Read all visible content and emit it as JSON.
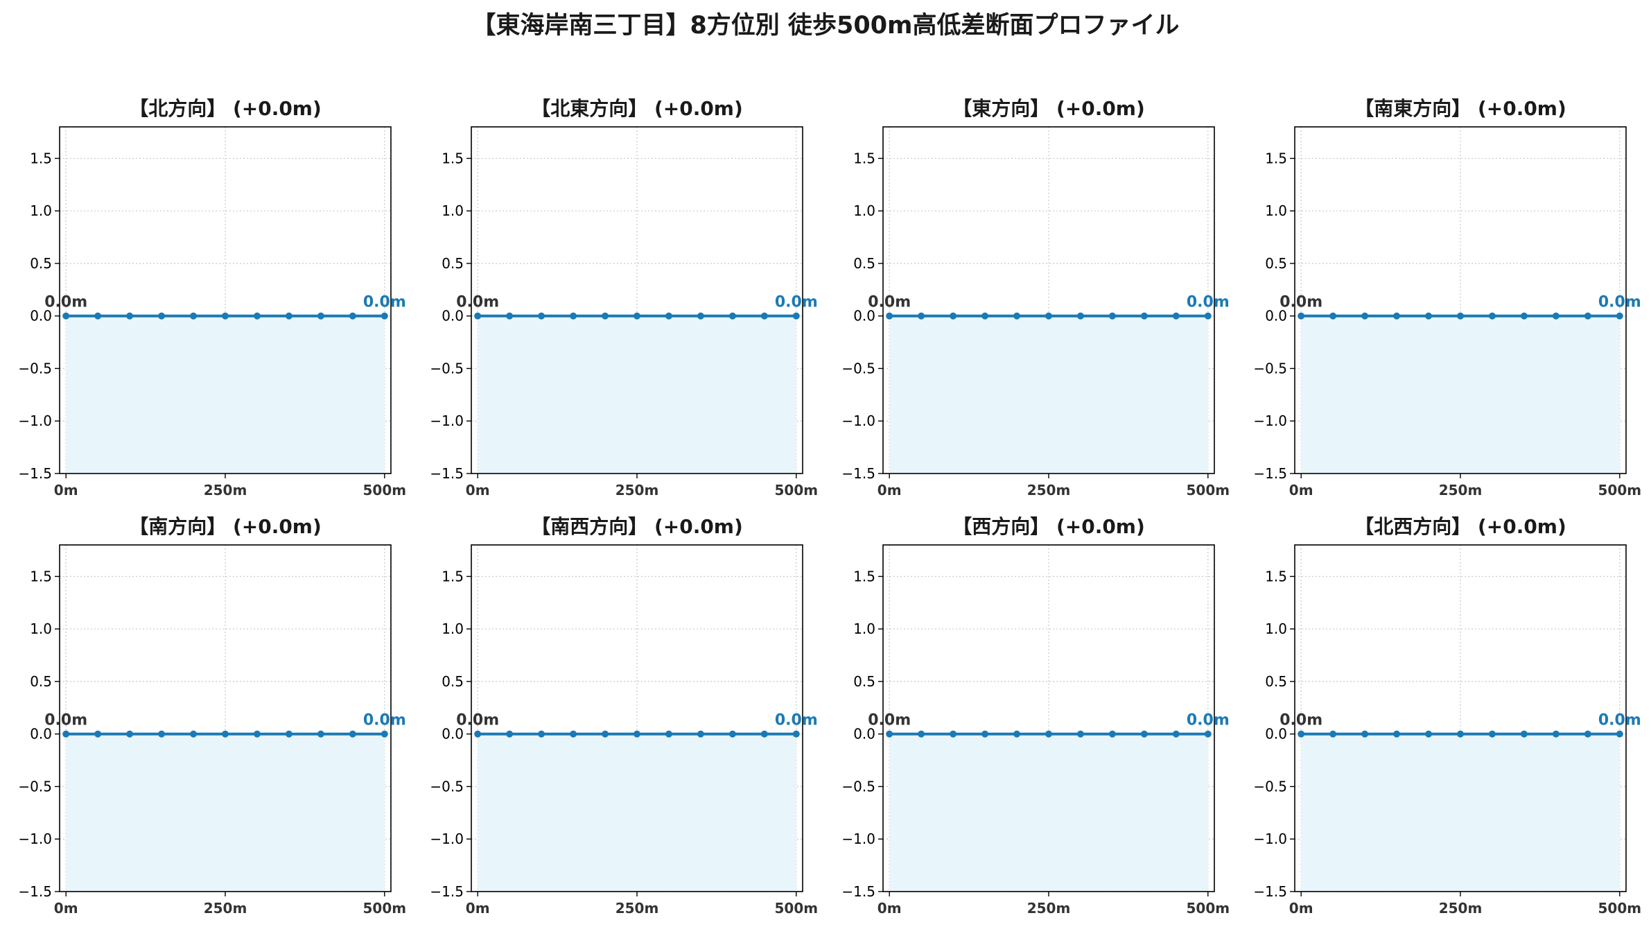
{
  "title": "【東海岸南三丁目】8方位別 徒歩500m高低差断面プロファイル",
  "colors": {
    "line": "#1a7ab5",
    "fill": "#e8f6fc",
    "start_label": "#333333",
    "end_label": "#1a7ab5",
    "grid": "#c8c8c8"
  },
  "chart_data": [
    {
      "type": "line",
      "title": "【北方向】 (+0.0m)",
      "x": [
        0,
        50,
        100,
        150,
        200,
        250,
        300,
        350,
        400,
        450,
        500
      ],
      "y": [
        0,
        0,
        0,
        0,
        0,
        0,
        0,
        0,
        0,
        0,
        0
      ],
      "xlim": [
        -10,
        510
      ],
      "ylim": [
        -1.5,
        1.8
      ],
      "yticks": [
        "−1.5",
        "−1.0",
        "−0.5",
        "0.0",
        "0.5",
        "1.0",
        "1.5"
      ],
      "ytick_values": [
        -1.5,
        -1.0,
        -0.5,
        0.0,
        0.5,
        1.0,
        1.5
      ],
      "xticks": [
        "0m",
        "250m",
        "500m"
      ],
      "xtick_values": [
        0,
        250,
        500
      ],
      "start_label": "0.0m",
      "end_label": "0.0m",
      "grid": true
    },
    {
      "type": "line",
      "title": "【北東方向】 (+0.0m)",
      "x": [
        0,
        50,
        100,
        150,
        200,
        250,
        300,
        350,
        400,
        450,
        500
      ],
      "y": [
        0,
        0,
        0,
        0,
        0,
        0,
        0,
        0,
        0,
        0,
        0
      ],
      "xlim": [
        -10,
        510
      ],
      "ylim": [
        -1.5,
        1.8
      ],
      "yticks": [
        "−1.5",
        "−1.0",
        "−0.5",
        "0.0",
        "0.5",
        "1.0",
        "1.5"
      ],
      "ytick_values": [
        -1.5,
        -1.0,
        -0.5,
        0.0,
        0.5,
        1.0,
        1.5
      ],
      "xticks": [
        "0m",
        "250m",
        "500m"
      ],
      "xtick_values": [
        0,
        250,
        500
      ],
      "start_label": "0.0m",
      "end_label": "0.0m",
      "grid": true
    },
    {
      "type": "line",
      "title": "【東方向】 (+0.0m)",
      "x": [
        0,
        50,
        100,
        150,
        200,
        250,
        300,
        350,
        400,
        450,
        500
      ],
      "y": [
        0,
        0,
        0,
        0,
        0,
        0,
        0,
        0,
        0,
        0,
        0
      ],
      "xlim": [
        -10,
        510
      ],
      "ylim": [
        -1.5,
        1.8
      ],
      "yticks": [
        "−1.5",
        "−1.0",
        "−0.5",
        "0.0",
        "0.5",
        "1.0",
        "1.5"
      ],
      "ytick_values": [
        -1.5,
        -1.0,
        -0.5,
        0.0,
        0.5,
        1.0,
        1.5
      ],
      "xticks": [
        "0m",
        "250m",
        "500m"
      ],
      "xtick_values": [
        0,
        250,
        500
      ],
      "start_label": "0.0m",
      "end_label": "0.0m",
      "grid": true
    },
    {
      "type": "line",
      "title": "【南東方向】 (+0.0m)",
      "x": [
        0,
        50,
        100,
        150,
        200,
        250,
        300,
        350,
        400,
        450,
        500
      ],
      "y": [
        0,
        0,
        0,
        0,
        0,
        0,
        0,
        0,
        0,
        0,
        0
      ],
      "xlim": [
        -10,
        510
      ],
      "ylim": [
        -1.5,
        1.8
      ],
      "yticks": [
        "−1.5",
        "−1.0",
        "−0.5",
        "0.0",
        "0.5",
        "1.0",
        "1.5"
      ],
      "ytick_values": [
        -1.5,
        -1.0,
        -0.5,
        0.0,
        0.5,
        1.0,
        1.5
      ],
      "xticks": [
        "0m",
        "250m",
        "500m"
      ],
      "xtick_values": [
        0,
        250,
        500
      ],
      "start_label": "0.0m",
      "end_label": "0.0m",
      "grid": true
    },
    {
      "type": "line",
      "title": "【南方向】 (+0.0m)",
      "x": [
        0,
        50,
        100,
        150,
        200,
        250,
        300,
        350,
        400,
        450,
        500
      ],
      "y": [
        0,
        0,
        0,
        0,
        0,
        0,
        0,
        0,
        0,
        0,
        0
      ],
      "xlim": [
        -10,
        510
      ],
      "ylim": [
        -1.5,
        1.8
      ],
      "yticks": [
        "−1.5",
        "−1.0",
        "−0.5",
        "0.0",
        "0.5",
        "1.0",
        "1.5"
      ],
      "ytick_values": [
        -1.5,
        -1.0,
        -0.5,
        0.0,
        0.5,
        1.0,
        1.5
      ],
      "xticks": [
        "0m",
        "250m",
        "500m"
      ],
      "xtick_values": [
        0,
        250,
        500
      ],
      "start_label": "0.0m",
      "end_label": "0.0m",
      "grid": true
    },
    {
      "type": "line",
      "title": "【南西方向】 (+0.0m)",
      "x": [
        0,
        50,
        100,
        150,
        200,
        250,
        300,
        350,
        400,
        450,
        500
      ],
      "y": [
        0,
        0,
        0,
        0,
        0,
        0,
        0,
        0,
        0,
        0,
        0
      ],
      "xlim": [
        -10,
        510
      ],
      "ylim": [
        -1.5,
        1.8
      ],
      "yticks": [
        "−1.5",
        "−1.0",
        "−0.5",
        "0.0",
        "0.5",
        "1.0",
        "1.5"
      ],
      "ytick_values": [
        -1.5,
        -1.0,
        -0.5,
        0.0,
        0.5,
        1.0,
        1.5
      ],
      "xticks": [
        "0m",
        "250m",
        "500m"
      ],
      "xtick_values": [
        0,
        250,
        500
      ],
      "start_label": "0.0m",
      "end_label": "0.0m",
      "grid": true
    },
    {
      "type": "line",
      "title": "【西方向】 (+0.0m)",
      "x": [
        0,
        50,
        100,
        150,
        200,
        250,
        300,
        350,
        400,
        450,
        500
      ],
      "y": [
        0,
        0,
        0,
        0,
        0,
        0,
        0,
        0,
        0,
        0,
        0
      ],
      "xlim": [
        -10,
        510
      ],
      "ylim": [
        -1.5,
        1.8
      ],
      "yticks": [
        "−1.5",
        "−1.0",
        "−0.5",
        "0.0",
        "0.5",
        "1.0",
        "1.5"
      ],
      "ytick_values": [
        -1.5,
        -1.0,
        -0.5,
        0.0,
        0.5,
        1.0,
        1.5
      ],
      "xticks": [
        "0m",
        "250m",
        "500m"
      ],
      "xtick_values": [
        0,
        250,
        500
      ],
      "start_label": "0.0m",
      "end_label": "0.0m",
      "grid": true
    },
    {
      "type": "line",
      "title": "【北西方向】 (+0.0m)",
      "x": [
        0,
        50,
        100,
        150,
        200,
        250,
        300,
        350,
        400,
        450,
        500
      ],
      "y": [
        0,
        0,
        0,
        0,
        0,
        0,
        0,
        0,
        0,
        0,
        0
      ],
      "xlim": [
        -10,
        510
      ],
      "ylim": [
        -1.5,
        1.8
      ],
      "yticks": [
        "−1.5",
        "−1.0",
        "−0.5",
        "0.0",
        "0.5",
        "1.0",
        "1.5"
      ],
      "ytick_values": [
        -1.5,
        -1.0,
        -0.5,
        0.0,
        0.5,
        1.0,
        1.5
      ],
      "xticks": [
        "0m",
        "250m",
        "500m"
      ],
      "xtick_values": [
        0,
        250,
        500
      ],
      "start_label": "0.0m",
      "end_label": "0.0m",
      "grid": true
    }
  ]
}
